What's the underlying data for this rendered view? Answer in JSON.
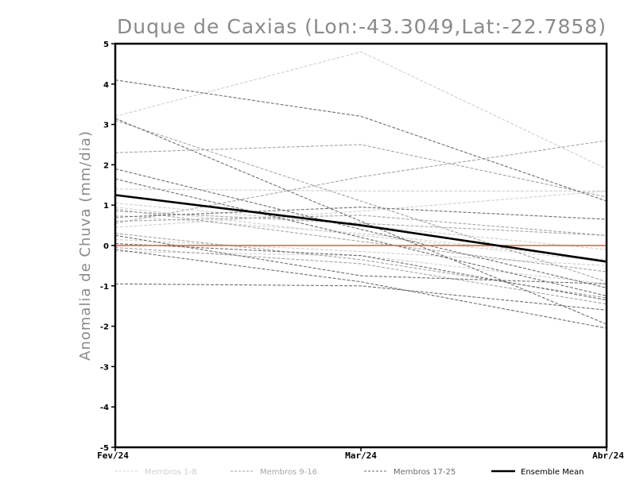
{
  "chart_data": {
    "type": "line",
    "title": "Duque de Caxias (Lon:-43.3049,Lat:-22.7858)",
    "ylabel": "Anomalia de Chuva (mm/dia)",
    "xlabel": "",
    "categories": [
      "Fev/24",
      "Mar/24",
      "Abr/24"
    ],
    "ylim": [
      -5,
      5
    ],
    "yticks": [
      -5,
      -4,
      -3,
      -2,
      -1,
      0,
      1,
      2,
      3,
      4,
      5
    ],
    "ytick_labels": [
      "-5",
      "-4",
      "-3",
      "-2",
      "-1",
      "0",
      "1",
      "2",
      "3",
      "4",
      "5"
    ],
    "grid": false,
    "zero_line_color": "#ff4d4d",
    "legend": {
      "position": "bottom",
      "entries": [
        {
          "label": "Membros 1-8",
          "color": "#d0d0d0",
          "style": "dashed"
        },
        {
          "label": "Membros 9-16",
          "color": "#a6a6a6",
          "style": "dashed"
        },
        {
          "label": "Membros 17-25",
          "color": "#6e6e6e",
          "style": "dashed"
        },
        {
          "label": "Ensemble Mean",
          "color": "#000000",
          "style": "solid"
        }
      ]
    },
    "groups": [
      {
        "name": "Membros 1-8",
        "color": "#d0d0d0",
        "series": [
          {
            "values": [
              3.2,
              4.8,
              1.9
            ]
          },
          {
            "values": [
              1.4,
              1.35,
              1.35
            ]
          },
          {
            "values": [
              1.05,
              0.5,
              -0.1
            ]
          },
          {
            "values": [
              0.95,
              0.25,
              -0.4
            ]
          },
          {
            "values": [
              0.75,
              0.3,
              -0.35
            ]
          },
          {
            "values": [
              0.15,
              -0.15,
              -0.5
            ]
          },
          {
            "values": [
              0.45,
              0.85,
              1.35
            ]
          },
          {
            "values": [
              -0.15,
              -0.25,
              -0.95
            ]
          }
        ]
      },
      {
        "name": "Membros 9-16",
        "color": "#a6a6a6",
        "series": [
          {
            "values": [
              0.85,
              0.55,
              0.25
            ]
          },
          {
            "values": [
              0.55,
              1.7,
              2.6
            ]
          },
          {
            "values": [
              0.3,
              -0.35,
              -1.3
            ]
          },
          {
            "values": [
              3.1,
              1.1,
              -0.9
            ]
          },
          {
            "values": [
              2.3,
              2.5,
              1.2
            ]
          },
          {
            "values": [
              0.9,
              0.1,
              -0.65
            ]
          },
          {
            "values": [
              -0.05,
              -0.45,
              -1.45
            ]
          },
          {
            "values": [
              0.6,
              0.75,
              0.25
            ]
          }
        ]
      },
      {
        "name": "Membros 17-25",
        "color": "#6e6e6e",
        "series": [
          {
            "values": [
              4.1,
              3.2,
              1.1
            ]
          },
          {
            "values": [
              3.15,
              0.6,
              -1.95
            ]
          },
          {
            "values": [
              1.9,
              0.4,
              -1.05
            ]
          },
          {
            "values": [
              0.7,
              0.95,
              0.65
            ]
          },
          {
            "values": [
              -0.95,
              -1.0,
              -1.6
            ]
          },
          {
            "values": [
              0.25,
              -0.75,
              -0.95
            ]
          },
          {
            "values": [
              1.65,
              0.2,
              -1.25
            ]
          },
          {
            "values": [
              -0.1,
              -0.9,
              -2.05
            ]
          },
          {
            "values": [
              0.05,
              -0.25,
              -1.35
            ]
          }
        ]
      }
    ],
    "ensemble_mean": {
      "name": "Ensemble Mean",
      "color": "#000000",
      "values": [
        1.25,
        0.5,
        -0.4
      ]
    }
  }
}
